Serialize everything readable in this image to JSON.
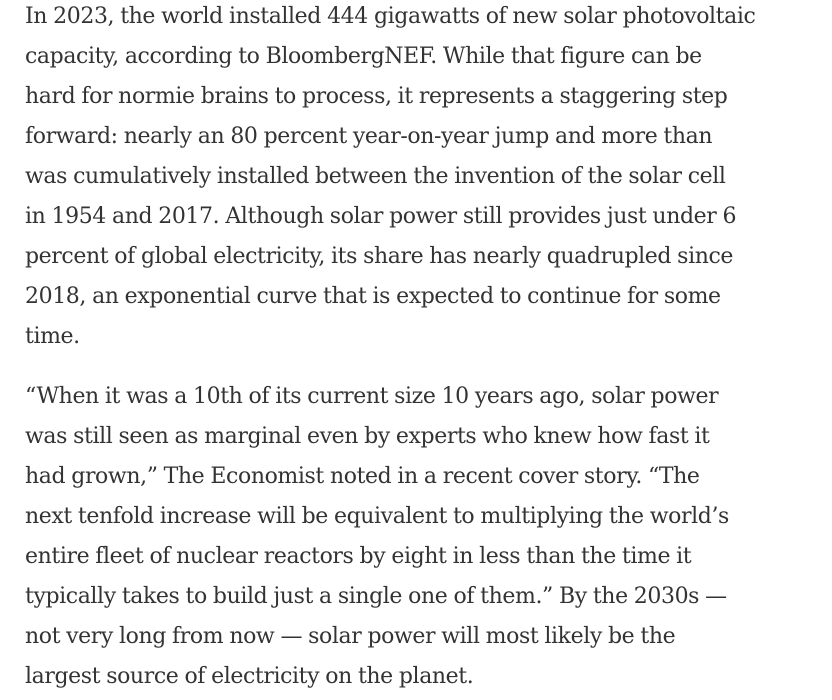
{
  "article": {
    "paragraph_1": [
      "In 2023, the world installed 444 gigawatts of new solar photovoltaic",
      "capacity, according to BloombergNEF. While that figure can be",
      "hard for normie brains to process, it represents a staggering step",
      "forward: nearly an 80 percent year-on-year jump and more than",
      "was cumulatively installed between the invention of the solar cell",
      "in 1954 and 2017. Although solar power still provides just under 6",
      "percent of global electricity, its share has nearly quadrupled since",
      "2018, an exponential curve that is expected to continue for some",
      "time."
    ],
    "paragraph_2": [
      "“When it was a 10th of its current size 10 years ago, solar power",
      "was still seen as marginal even by experts who knew how fast it",
      "had grown,” The Economist noted in a recent cover story. “The",
      "next tenfold increase will be equivalent to multiplying the world’s",
      "entire fleet of nuclear reactors by eight in less than the time it",
      "typically takes to build just a single one of them.” By the 2030s —",
      "not very long from now — solar power will most likely be the",
      "largest source of electricity on the planet."
    ]
  }
}
